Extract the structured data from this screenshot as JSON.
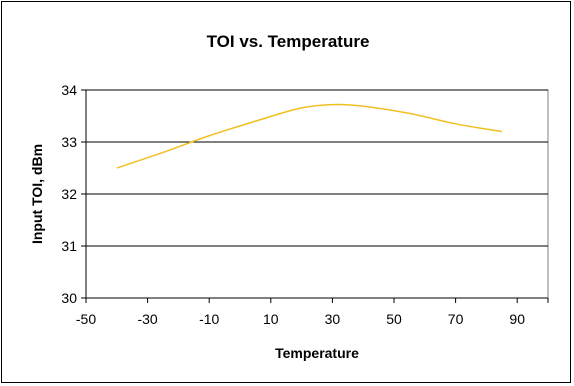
{
  "chart_data": {
    "type": "line",
    "title": "TOI vs. Temperature",
    "xlabel": "Temperature",
    "ylabel": "Input TOI, dBm",
    "xlim": [
      -50,
      100
    ],
    "ylim": [
      30,
      34
    ],
    "xticks": [
      "-50",
      "-30",
      "-10",
      "10",
      "30",
      "50",
      "70",
      "90"
    ],
    "yticks": [
      "30",
      "31",
      "32",
      "33",
      "34"
    ],
    "grid": "horizontal",
    "legend": "none",
    "series": [
      {
        "color": "#f0c020",
        "x": [
          -40,
          -25,
          -10,
          5,
          18,
          25,
          33,
          40,
          55,
          70,
          85
        ],
        "y": [
          32.5,
          32.8,
          33.12,
          33.4,
          33.63,
          33.7,
          33.72,
          33.69,
          33.55,
          33.35,
          33.2
        ]
      }
    ]
  }
}
